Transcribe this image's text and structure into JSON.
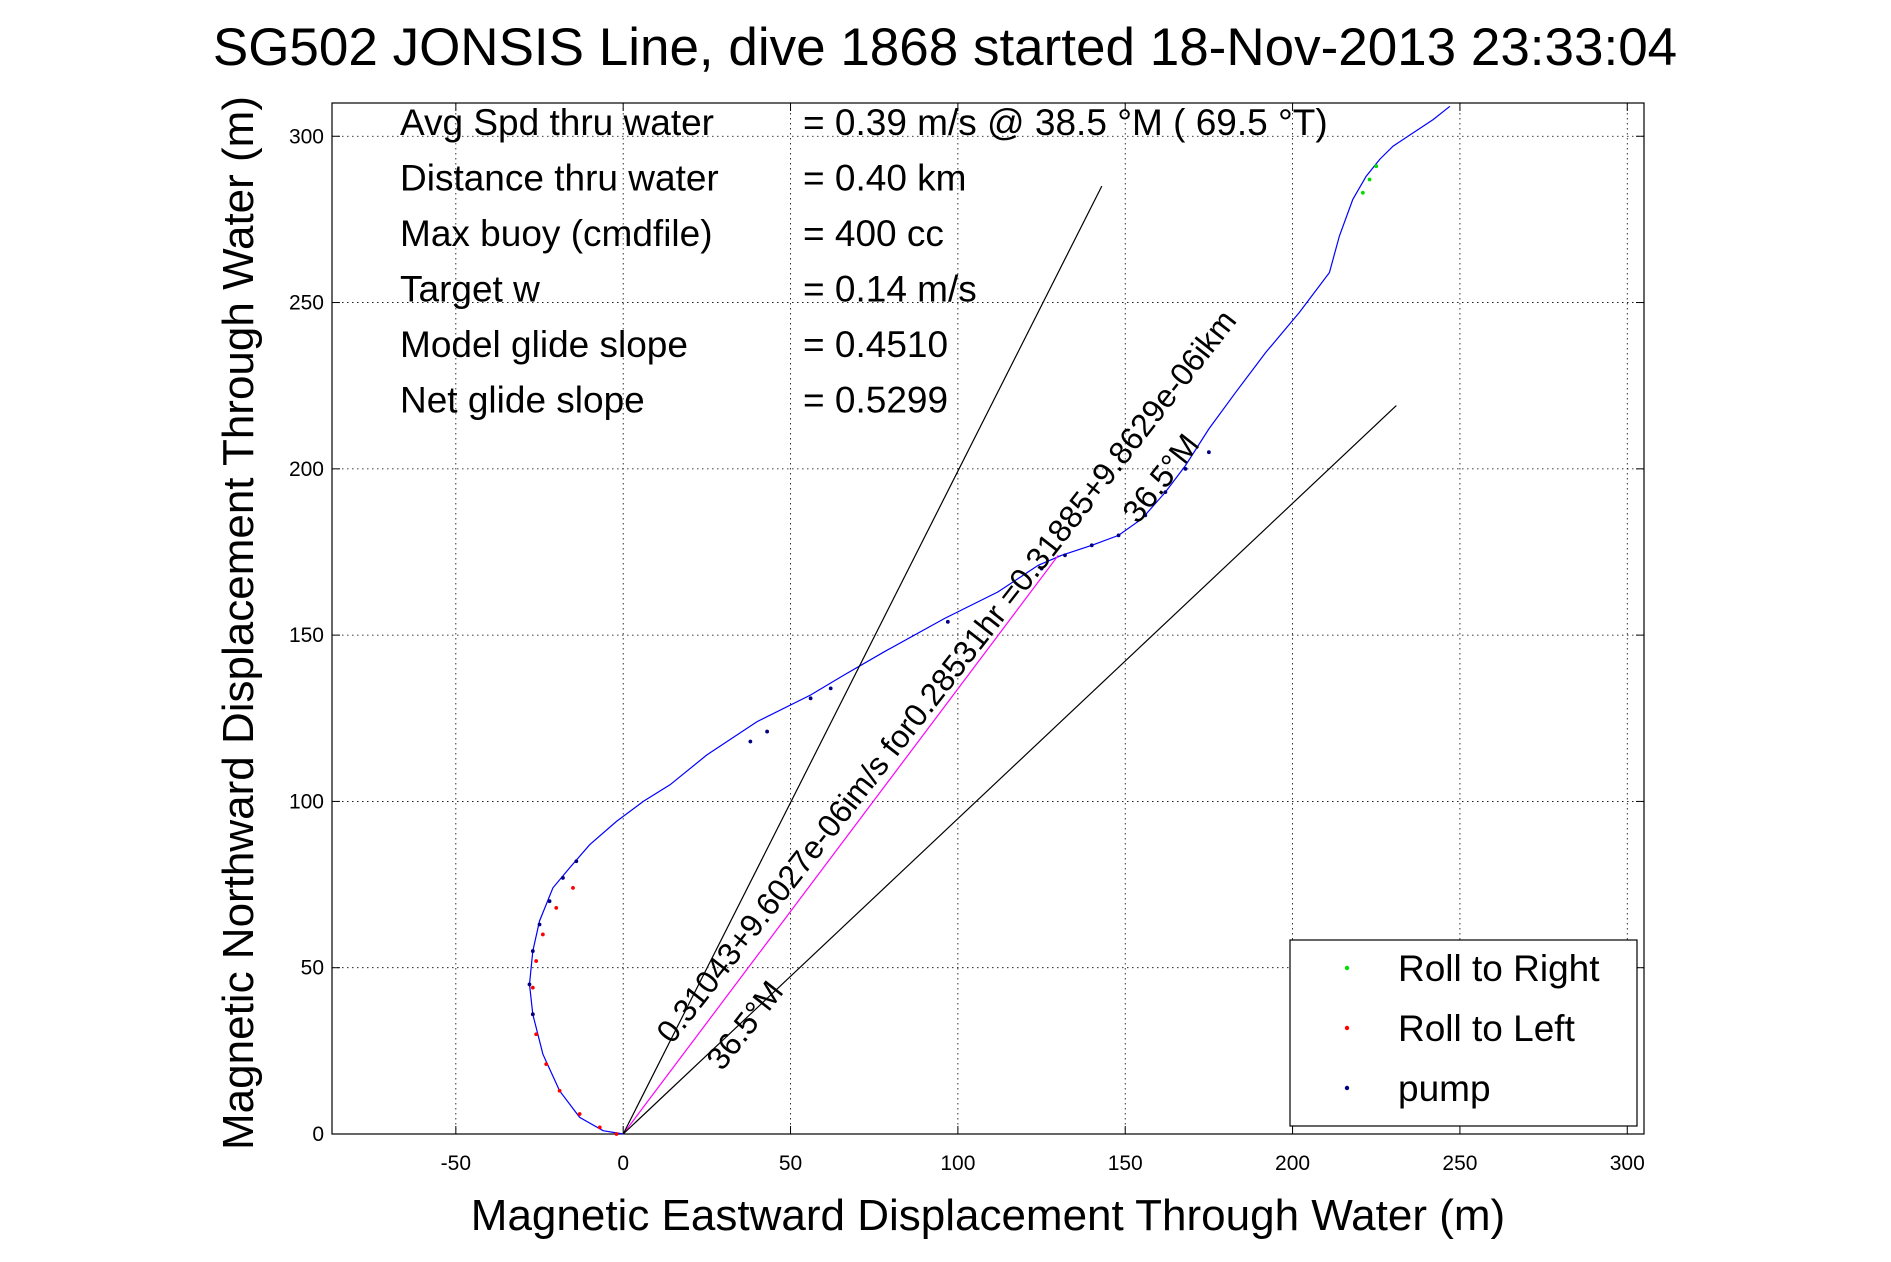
{
  "chart_data": {
    "type": "line",
    "title": "SG502 JONSIS Line, dive 1868 started 18-Nov-2013 23:33:04",
    "xlabel": "Magnetic Eastward Displacement Through Water (m)",
    "ylabel": "Magnetic Northward Displacement Through Water (m)",
    "xlim": [
      -87,
      305
    ],
    "ylim": [
      0,
      310
    ],
    "grid": true,
    "x_ticks": [
      -50,
      0,
      50,
      100,
      150,
      200,
      250,
      300
    ],
    "y_ticks": [
      0,
      50,
      100,
      150,
      200,
      250,
      300
    ],
    "stats": [
      {
        "label": "Avg Spd thru water",
        "value": "=  0.39 m/s @  38.5 °M ( 69.5 °T)"
      },
      {
        "label": "Distance thru water",
        "value": "=  0.40 km"
      },
      {
        "label": "Max buoy (cmdfile)",
        "value": "= 400 cc"
      },
      {
        "label": "Target w",
        "value": "= 0.14 m/s"
      },
      {
        "label": "Model glide slope",
        "value": "= 0.4510"
      },
      {
        "label": "Net glide slope",
        "value": "= 0.5299"
      }
    ],
    "annotations": [
      {
        "text": "0.31043+9.6027e-06im/s for0.28531hr =0.31885+9.8629e-06ikm",
        "x": 15,
        "y": 25,
        "angle_deg": 52
      },
      {
        "text": "36.5°M",
        "x": 25,
        "y": 20,
        "angle_deg": 52
      },
      {
        "text": "36.5°M",
        "x": 155,
        "y": 185,
        "angle_deg": 52
      }
    ],
    "legend": {
      "position": "bottom-right",
      "entries": [
        {
          "name": "Roll to Right",
          "color": "#00dd00"
        },
        {
          "name": "Roll to Left",
          "color": "#ff0000"
        },
        {
          "name": "pump",
          "color": "#000080"
        }
      ]
    },
    "series": [
      {
        "role": "track",
        "color": "#0000ff",
        "x": [
          0,
          -6,
          -13,
          -19,
          -24,
          -27,
          -28,
          -27,
          -25,
          -21,
          -16,
          -10,
          -2,
          6,
          14,
          25,
          40,
          56,
          66,
          78,
          96,
          112,
          124,
          131,
          140,
          148,
          155,
          162,
          168,
          175,
          183,
          192,
          202,
          211,
          214,
          218,
          222,
          226,
          230,
          236,
          242,
          247
        ],
        "y": [
          0,
          1,
          5,
          13,
          24,
          36,
          45,
          55,
          64,
          74,
          80,
          87,
          94,
          100,
          105,
          114,
          124,
          132,
          138,
          145,
          155,
          163,
          171,
          174,
          177,
          180,
          185,
          193,
          201,
          212,
          223,
          235,
          247,
          259,
          270,
          281,
          288,
          293,
          297,
          301,
          305,
          309
        ]
      },
      {
        "role": "heading-track",
        "color": "#ff00ff",
        "x": [
          0,
          130
        ],
        "y": [
          0,
          174
        ]
      },
      {
        "role": "bounds",
        "color": "#000000",
        "x": [
          0,
          143
        ],
        "y": [
          0,
          285
        ]
      },
      {
        "role": "bounds",
        "color": "#000000",
        "x": [
          0,
          231
        ],
        "y": [
          0,
          219
        ]
      }
    ],
    "markers": {
      "pump": {
        "color": "#000080",
        "x": [
          -27,
          -28,
          -27,
          -25,
          -22,
          -18,
          -14,
          38,
          43,
          56,
          62,
          97,
          125,
          132,
          140,
          148,
          156,
          162,
          168,
          175
        ],
        "y": [
          36,
          45,
          55,
          63,
          70,
          77,
          82,
          118,
          121,
          131,
          134,
          154,
          170,
          174,
          177,
          180,
          186,
          193,
          200,
          205
        ]
      },
      "roll_left": {
        "color": "#ff0000",
        "x": [
          -2,
          -7,
          -13,
          -19,
          -23,
          -26,
          -27,
          -27,
          -26,
          -24,
          -20,
          -15
        ],
        "y": [
          0,
          2,
          6,
          13,
          21,
          30,
          36,
          44,
          52,
          60,
          68,
          74
        ]
      },
      "roll_right": {
        "color": "#00dd00",
        "x": [
          221,
          223,
          225
        ],
        "y": [
          283,
          287,
          291
        ]
      }
    }
  }
}
